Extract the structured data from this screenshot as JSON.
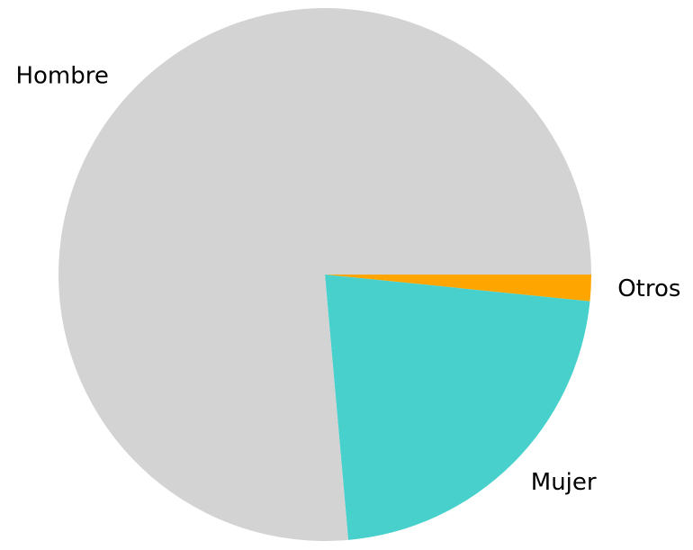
{
  "chart_data": {
    "type": "pie",
    "title": "",
    "slices": [
      {
        "label": "Otros",
        "value": 1.6,
        "color": "#ffa500"
      },
      {
        "label": "Mujer",
        "value": 22.0,
        "color": "#48d1cc"
      },
      {
        "label": "Hombre",
        "value": 76.4,
        "color": "#d3d3d3"
      }
    ],
    "start_angle": "3 o'clock",
    "direction": "clockwise"
  }
}
